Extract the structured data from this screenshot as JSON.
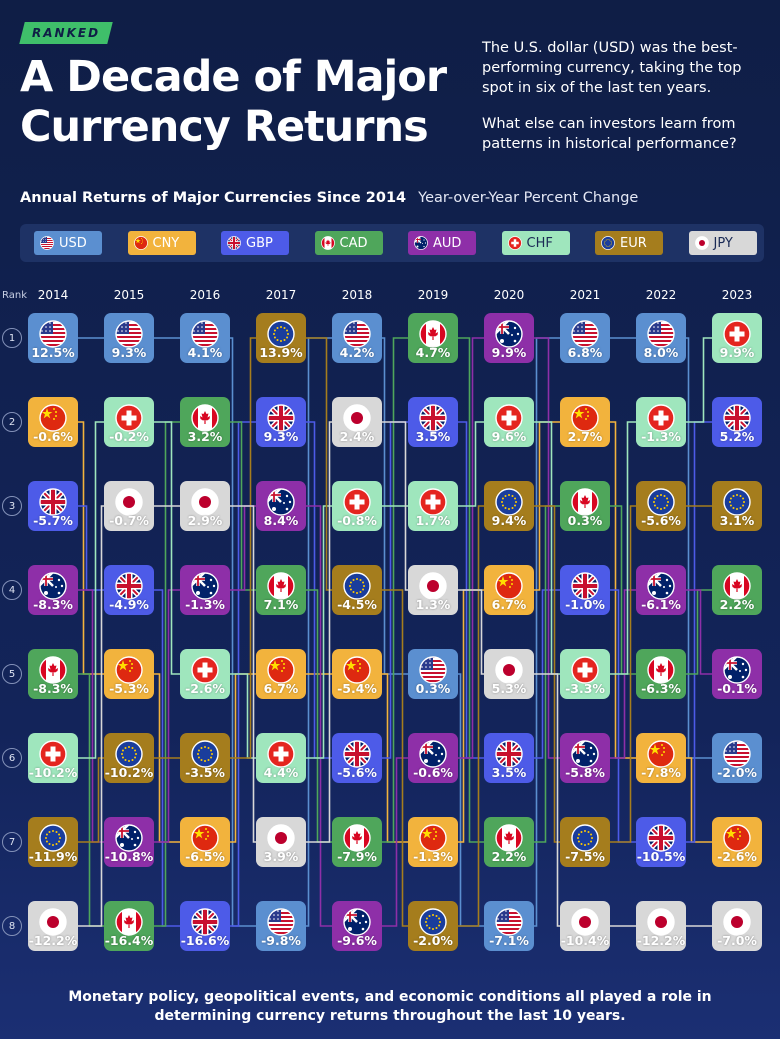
{
  "badge": "RANKED",
  "title": "A Decade of Major Currency Returns",
  "intro": [
    "The U.S. dollar (USD) was the best-performing currency, taking the top spot in six of the last ten years.",
    "What else can investors learn from patterns in historical performance?"
  ],
  "chart_title": "Annual Returns of Major Currencies Since 2014",
  "chart_subtitle": "Year-over-Year Percent Change",
  "rank_label": "Rank",
  "footer": "Monetary policy, geopolitical events, and economic conditions all played a role in determining currency returns throughout the last 10 years.",
  "currencies": {
    "USD": {
      "label": "USD",
      "color": "#5b8fd0",
      "flag": "us-flag-icon"
    },
    "CNY": {
      "label": "CNY",
      "color": "#f2b33d",
      "flag": "china-flag-icon"
    },
    "GBP": {
      "label": "GBP",
      "color": "#4d5be8",
      "flag": "uk-flag-icon"
    },
    "CAD": {
      "label": "CAD",
      "color": "#4fa65b",
      "flag": "canada-flag-icon"
    },
    "AUD": {
      "label": "AUD",
      "color": "#8e2fa8",
      "flag": "australia-flag-icon"
    },
    "CHF": {
      "label": "CHF",
      "color": "#9fe6bd",
      "flag": "switzerland-flag-icon"
    },
    "EUR": {
      "label": "EUR",
      "color": "#a57d1d",
      "flag": "eu-flag-icon"
    },
    "JPY": {
      "label": "JPY",
      "color": "#d8d8d8",
      "flag": "japan-flag-icon"
    }
  },
  "chart_data": {
    "type": "table",
    "title": "Annual Returns of Major Currencies Since 2014",
    "subtitle": "Year-over-Year Percent Change",
    "years": [
      "2014",
      "2015",
      "2016",
      "2017",
      "2018",
      "2019",
      "2020",
      "2021",
      "2022",
      "2023"
    ],
    "ranks": [
      "1",
      "2",
      "3",
      "4",
      "5",
      "6",
      "7",
      "8"
    ],
    "columns": [
      [
        {
          "c": "USD",
          "v": "12.5%"
        },
        {
          "c": "CNY",
          "v": "-0.6%"
        },
        {
          "c": "GBP",
          "v": "-5.7%"
        },
        {
          "c": "AUD",
          "v": "-8.3%"
        },
        {
          "c": "CAD",
          "v": "-8.3%"
        },
        {
          "c": "CHF",
          "v": "-10.2%"
        },
        {
          "c": "EUR",
          "v": "-11.9%"
        },
        {
          "c": "JPY",
          "v": "-12.2%"
        }
      ],
      [
        {
          "c": "USD",
          "v": "9.3%"
        },
        {
          "c": "CHF",
          "v": "-0.2%"
        },
        {
          "c": "JPY",
          "v": "-0.7%"
        },
        {
          "c": "GBP",
          "v": "-4.9%"
        },
        {
          "c": "CNY",
          "v": "-5.3%"
        },
        {
          "c": "EUR",
          "v": "-10.2%"
        },
        {
          "c": "AUD",
          "v": "-10.8%"
        },
        {
          "c": "CAD",
          "v": "-16.4%"
        }
      ],
      [
        {
          "c": "USD",
          "v": "4.1%"
        },
        {
          "c": "CAD",
          "v": "3.2%"
        },
        {
          "c": "JPY",
          "v": "2.9%"
        },
        {
          "c": "AUD",
          "v": "-1.3%"
        },
        {
          "c": "CHF",
          "v": "-2.6%"
        },
        {
          "c": "EUR",
          "v": "-3.5%"
        },
        {
          "c": "CNY",
          "v": "-6.5%"
        },
        {
          "c": "GBP",
          "v": "-16.6%"
        }
      ],
      [
        {
          "c": "EUR",
          "v": "13.9%"
        },
        {
          "c": "GBP",
          "v": "9.3%"
        },
        {
          "c": "AUD",
          "v": "8.4%"
        },
        {
          "c": "CAD",
          "v": "7.1%"
        },
        {
          "c": "CNY",
          "v": "6.7%"
        },
        {
          "c": "CHF",
          "v": "4.4%"
        },
        {
          "c": "JPY",
          "v": "3.9%"
        },
        {
          "c": "USD",
          "v": "-9.8%"
        }
      ],
      [
        {
          "c": "USD",
          "v": "4.2%"
        },
        {
          "c": "JPY",
          "v": "2.4%"
        },
        {
          "c": "CHF",
          "v": "-0.8%"
        },
        {
          "c": "EUR",
          "v": "-4.5%"
        },
        {
          "c": "CNY",
          "v": "-5.4%"
        },
        {
          "c": "GBP",
          "v": "-5.6%"
        },
        {
          "c": "CAD",
          "v": "-7.9%"
        },
        {
          "c": "AUD",
          "v": "-9.6%"
        }
      ],
      [
        {
          "c": "CAD",
          "v": "4.7%"
        },
        {
          "c": "GBP",
          "v": "3.5%"
        },
        {
          "c": "CHF",
          "v": "1.7%"
        },
        {
          "c": "JPY",
          "v": "1.3%"
        },
        {
          "c": "USD",
          "v": "0.3%"
        },
        {
          "c": "AUD",
          "v": "-0.6%"
        },
        {
          "c": "CNY",
          "v": "-1.3%"
        },
        {
          "c": "EUR",
          "v": "-2.0%"
        }
      ],
      [
        {
          "c": "AUD",
          "v": "9.9%"
        },
        {
          "c": "CHF",
          "v": "9.6%"
        },
        {
          "c": "EUR",
          "v": "9.4%"
        },
        {
          "c": "CNY",
          "v": "6.7%"
        },
        {
          "c": "JPY",
          "v": "5.3%"
        },
        {
          "c": "GBP",
          "v": "3.5%"
        },
        {
          "c": "CAD",
          "v": "2.2%"
        },
        {
          "c": "USD",
          "v": "-7.1%"
        }
      ],
      [
        {
          "c": "USD",
          "v": "6.8%"
        },
        {
          "c": "CNY",
          "v": "2.7%"
        },
        {
          "c": "CAD",
          "v": "0.3%"
        },
        {
          "c": "GBP",
          "v": "-1.0%"
        },
        {
          "c": "CHF",
          "v": "-3.3%"
        },
        {
          "c": "AUD",
          "v": "-5.8%"
        },
        {
          "c": "EUR",
          "v": "-7.5%"
        },
        {
          "c": "JPY",
          "v": "-10.4%"
        }
      ],
      [
        {
          "c": "USD",
          "v": "8.0%"
        },
        {
          "c": "CHF",
          "v": "-1.3%"
        },
        {
          "c": "EUR",
          "v": "-5.6%"
        },
        {
          "c": "AUD",
          "v": "-6.1%"
        },
        {
          "c": "CAD",
          "v": "-6.3%"
        },
        {
          "c": "CNY",
          "v": "-7.8%"
        },
        {
          "c": "GBP",
          "v": "-10.5%"
        },
        {
          "c": "JPY",
          "v": "-12.2%"
        }
      ],
      [
        {
          "c": "CHF",
          "v": "9.9%"
        },
        {
          "c": "GBP",
          "v": "5.2%"
        },
        {
          "c": "EUR",
          "v": "3.1%"
        },
        {
          "c": "CAD",
          "v": "2.2%"
        },
        {
          "c": "AUD",
          "v": "-0.1%"
        },
        {
          "c": "USD",
          "v": "-2.0%"
        },
        {
          "c": "CNY",
          "v": "-2.6%"
        },
        {
          "c": "JPY",
          "v": "-7.0%"
        }
      ]
    ]
  }
}
